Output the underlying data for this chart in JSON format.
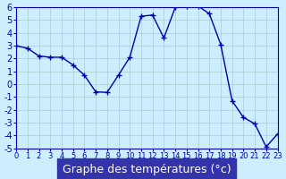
{
  "x": [
    0,
    1,
    2,
    3,
    4,
    5,
    6,
    7,
    8,
    9,
    10,
    11,
    12,
    13,
    14,
    15,
    16,
    17,
    18,
    19,
    20,
    21,
    22,
    23
  ],
  "y": [
    3.0,
    2.8,
    2.2,
    2.1,
    2.1,
    1.5,
    0.7,
    -0.6,
    -0.65,
    0.7,
    2.1,
    5.3,
    5.4,
    3.6,
    6.0,
    6.1,
    6.1,
    5.5,
    3.1,
    -1.3,
    -2.6,
    -3.1,
    -4.9,
    -3.9
  ],
  "xlabel": "Graphe des températures (°c)",
  "xlim": [
    0,
    23
  ],
  "ylim": [
    -5,
    6
  ],
  "xticks": [
    0,
    1,
    2,
    3,
    4,
    5,
    6,
    7,
    8,
    9,
    10,
    11,
    12,
    13,
    14,
    15,
    16,
    17,
    18,
    19,
    20,
    21,
    22,
    23
  ],
  "yticks": [
    -5,
    -4,
    -3,
    -2,
    -1,
    0,
    1,
    2,
    3,
    4,
    5,
    6
  ],
  "line_color": "#0000aa",
  "marker": "+",
  "marker_color": "#0000aa",
  "bg_color": "#cceeff",
  "grid_color": "#aacccc",
  "xlabel_bg": "#3333aa",
  "xlabel_color": "#ffffff",
  "title_fontsize": 9,
  "tick_fontsize": 7
}
